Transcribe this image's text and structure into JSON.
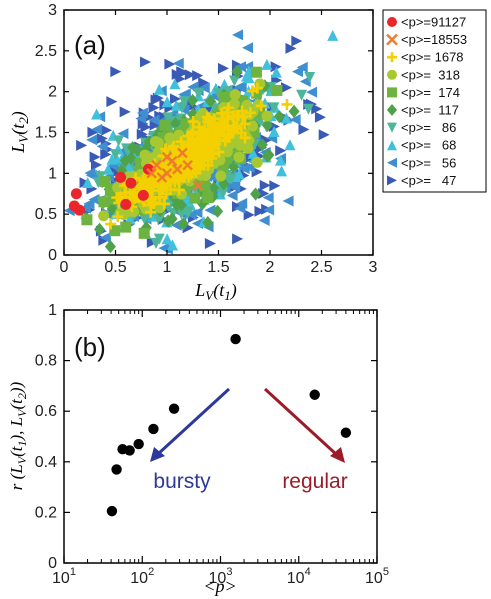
{
  "chart_data": [
    {
      "type": "scatter",
      "panel_label": "(a)",
      "xlabel": "L_V(t_1)",
      "ylabel": "L_V(t_2)",
      "xlim": [
        0,
        3
      ],
      "ylim": [
        0,
        3
      ],
      "xticks": [
        "0",
        "0.5",
        "1",
        "1.5",
        "2",
        "2.5",
        "3"
      ],
      "yticks": [
        "0",
        "0.5",
        "1",
        "1.5",
        "2",
        "2.5",
        "3"
      ],
      "legend_position": "right",
      "series": [
        {
          "name": "<p>=91127",
          "color": "#e8262b",
          "marker": "circle",
          "points": [
            [
              0.1,
              0.6
            ],
            [
              0.15,
              0.55
            ],
            [
              0.12,
              0.75
            ],
            [
              0.6,
              0.62
            ],
            [
              0.77,
              0.73
            ],
            [
              0.82,
              1.05
            ],
            [
              0.65,
              0.88
            ],
            [
              0.55,
              0.95
            ]
          ]
        },
        {
          "name": "<p>=18553",
          "color": "#ef7a2e",
          "marker": "x",
          "points": [
            [
              0.9,
              1.1
            ],
            [
              1.0,
              1.0
            ],
            [
              1.1,
              1.05
            ],
            [
              1.2,
              1.1
            ],
            [
              1.0,
              1.2
            ],
            [
              1.3,
              0.85
            ],
            [
              0.95,
              0.95
            ],
            [
              1.15,
              1.25
            ],
            [
              1.05,
              1.15
            ],
            [
              0.85,
              1.0
            ]
          ]
        },
        {
          "name": "<p>= 1678",
          "color": "#f5d000",
          "marker": "plus",
          "points": []
        },
        {
          "name": "<p>=  318",
          "color": "#a8c832",
          "marker": "circle",
          "points": []
        },
        {
          "name": "<p>=  174",
          "color": "#6db33f",
          "marker": "square",
          "points": []
        },
        {
          "name": "<p>=  117",
          "color": "#4ea24a",
          "marker": "diamond",
          "points": []
        },
        {
          "name": "<p>=   86",
          "color": "#4db69a",
          "marker": "triangle-down",
          "points": []
        },
        {
          "name": "<p>=   68",
          "color": "#40c0dc",
          "marker": "triangle-up",
          "points": []
        },
        {
          "name": "<p>=   56",
          "color": "#3f8fd0",
          "marker": "triangle-left",
          "points": []
        },
        {
          "name": "<p>=   47",
          "color": "#3a5bb5",
          "marker": "triangle-right",
          "points": []
        }
      ]
    },
    {
      "type": "scatter",
      "panel_label": "(b)",
      "xlabel": "<p>",
      "ylabel": "r (L_V(t_1), L_V(t_2))",
      "xscale": "log",
      "xlim": [
        10,
        100000
      ],
      "ylim": [
        0,
        1
      ],
      "yticks": [
        "0",
        "0.2",
        "0.4",
        "0.6",
        "0.8",
        "1"
      ],
      "points": [
        {
          "x": 41,
          "y": 0.205
        },
        {
          "x": 47,
          "y": 0.37
        },
        {
          "x": 56,
          "y": 0.45
        },
        {
          "x": 69,
          "y": 0.445
        },
        {
          "x": 90,
          "y": 0.47
        },
        {
          "x": 139,
          "y": 0.53
        },
        {
          "x": 255,
          "y": 0.61
        },
        {
          "x": 1560,
          "y": 0.885
        },
        {
          "x": 16000,
          "y": 0.665
        },
        {
          "x": 40000,
          "y": 0.515
        }
      ],
      "annotations": [
        {
          "text": "bursty",
          "color": "#2b3a9a"
        },
        {
          "text": "regular",
          "color": "#9b1c28"
        }
      ]
    }
  ]
}
